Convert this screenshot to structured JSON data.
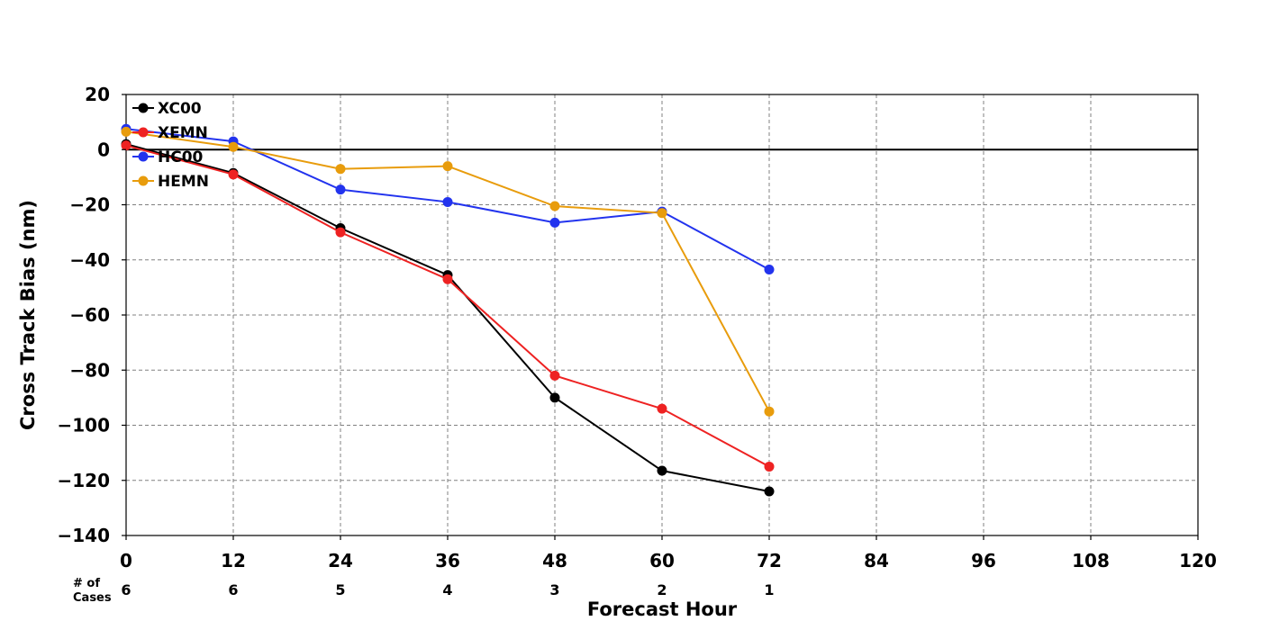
{
  "chart_data": {
    "type": "line",
    "title": "",
    "xlabel": "Forecast Hour",
    "ylabel": "Cross Track Bias (nm)",
    "xlim": [
      0,
      120
    ],
    "ylim": [
      -140,
      20
    ],
    "x_ticks": [
      0,
      12,
      24,
      36,
      48,
      60,
      72,
      84,
      96,
      108,
      120
    ],
    "y_ticks": [
      20,
      0,
      -20,
      -40,
      -60,
      -80,
      -100,
      -120,
      -140
    ],
    "grid": true,
    "zero_line": true,
    "legend_position": "top-left",
    "x": [
      0,
      12,
      24,
      36,
      48,
      60,
      72
    ],
    "series": [
      {
        "name": "XC00",
        "color": "#000000",
        "values": [
          2,
          -8.5,
          -28.5,
          -45.5,
          -90,
          -116.5,
          -124
        ]
      },
      {
        "name": "XEMN",
        "color": "#ee2222",
        "values": [
          1.5,
          -9,
          -30,
          -47,
          -82,
          -94,
          -115
        ]
      },
      {
        "name": "HC00",
        "color": "#2233ee",
        "values": [
          7.5,
          3,
          -14.5,
          -19,
          -26.5,
          -22.5,
          -43.5
        ]
      },
      {
        "name": "HEMN",
        "color": "#e89c0c",
        "values": [
          6.5,
          1,
          -7,
          -6,
          -20.5,
          -23,
          -95
        ]
      }
    ],
    "cases": {
      "label_line1": "# of",
      "label_line2": "Cases",
      "x": [
        0,
        12,
        24,
        36,
        48,
        60,
        72
      ],
      "counts": [
        "6",
        "6",
        "5",
        "4",
        "3",
        "2",
        "1"
      ]
    }
  }
}
